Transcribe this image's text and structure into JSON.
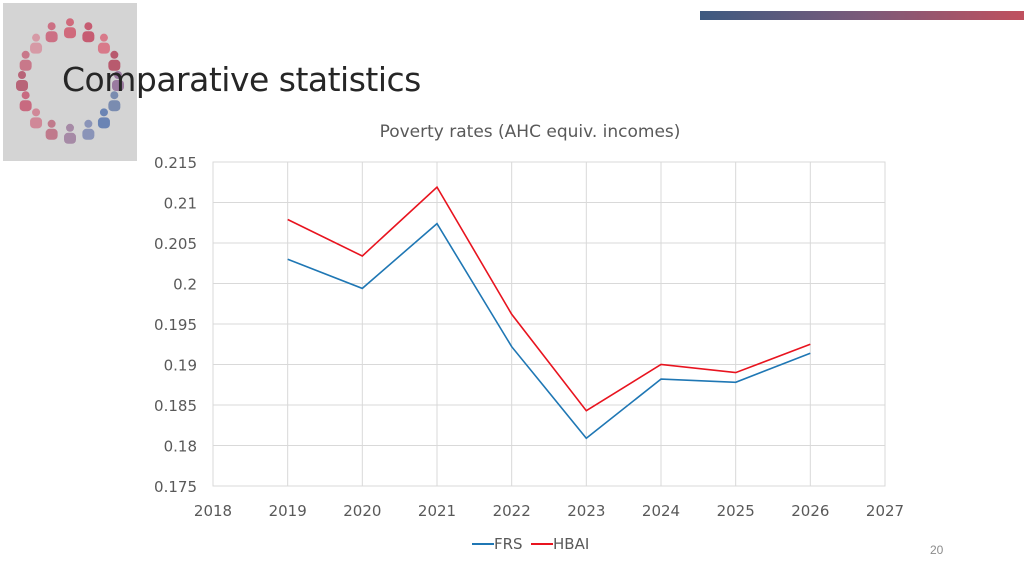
{
  "slide": {
    "title": "Comparative statistics",
    "page_number": "20"
  },
  "colors": {
    "accent_start": "#3d5a80",
    "accent_end": "#c0505e"
  },
  "chart_data": {
    "type": "line",
    "title": "Poverty rates (AHC equiv. incomes)",
    "xlabel": "",
    "ylabel": "",
    "xlim": [
      2018,
      2027
    ],
    "ylim": [
      0.175,
      0.215
    ],
    "x_ticks": [
      "2018",
      "2019",
      "2020",
      "2021",
      "2022",
      "2023",
      "2024",
      "2025",
      "2026",
      "2027"
    ],
    "y_ticks": [
      "0.175",
      "0.18",
      "0.185",
      "0.19",
      "0.195",
      "0.2",
      "0.205",
      "0.21",
      "0.215"
    ],
    "grid": true,
    "legend_position": "bottom",
    "x": [
      2019,
      2020,
      2021,
      2022,
      2023,
      2024,
      2025,
      2026
    ],
    "series": [
      {
        "name": "FRS",
        "color": "#1f77b4",
        "values": [
          0.203,
          0.1994,
          0.2074,
          0.1922,
          0.1809,
          0.1882,
          0.1878,
          0.1914
        ]
      },
      {
        "name": "HBAI",
        "color": "#e8141f",
        "values": [
          0.2079,
          0.2034,
          0.2119,
          0.1962,
          0.1843,
          0.19,
          0.189,
          0.1925
        ]
      }
    ]
  }
}
